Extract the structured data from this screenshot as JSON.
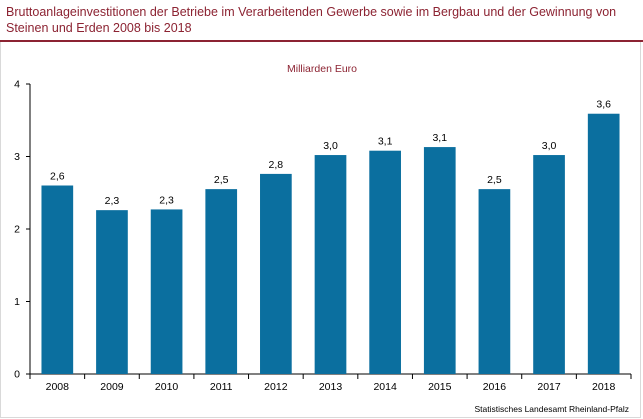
{
  "title": "Bruttoanlageinvestitionen der Betriebe im Verarbeitenden Gewerbe sowie im Bergbau und der Gewinnung von Steinen und Erden 2008 bis 2018",
  "source": "Statistisches Landesamt Rheinland-Pfalz",
  "colors": {
    "bar": "#0b6f9f",
    "title": "#8c2332"
  },
  "chart_data": {
    "type": "bar",
    "title": "",
    "unit_label": "Milliarden Euro",
    "xlabel": "",
    "ylabel": "",
    "categories": [
      "2008",
      "2009",
      "2010",
      "2011",
      "2012",
      "2013",
      "2014",
      "2015",
      "2016",
      "2017",
      "2018"
    ],
    "values": [
      2.6,
      2.26,
      2.27,
      2.55,
      2.76,
      3.02,
      3.08,
      3.13,
      2.55,
      3.02,
      3.59
    ],
    "data_labels": [
      "2,6",
      "2,3",
      "2,3",
      "2,5",
      "2,8",
      "3,0",
      "3,1",
      "3,1",
      "2,5",
      "3,0",
      "3,6"
    ],
    "ylim": [
      0,
      4
    ],
    "yticks": [
      0,
      1,
      2,
      3,
      4
    ],
    "ytick_labels": [
      "0",
      "1",
      "2",
      "3",
      "4"
    ],
    "grid": false,
    "legend": "none"
  }
}
